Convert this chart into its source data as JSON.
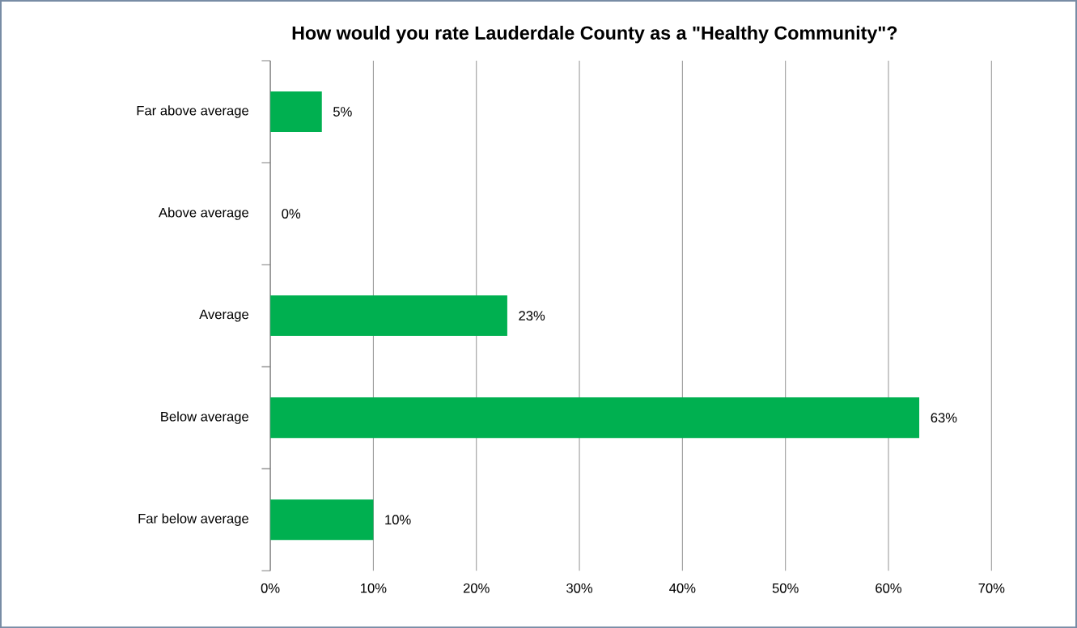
{
  "chart_data": {
    "type": "bar",
    "orientation": "horizontal",
    "title": "How would you rate Lauderdale County as a \"Healthy Community\"?",
    "categories": [
      "Far above average",
      "Above average",
      "Average",
      "Below average",
      "Far below average"
    ],
    "values": [
      5,
      0,
      23,
      63,
      10
    ],
    "value_labels": [
      "5%",
      "0%",
      "23%",
      "63%",
      "10%"
    ],
    "color": "#00b050",
    "xlim": [
      0,
      70
    ],
    "xticks": [
      {
        "value": 0,
        "label": "0%"
      },
      {
        "value": 10,
        "label": "10%"
      },
      {
        "value": 20,
        "label": "20%"
      },
      {
        "value": 30,
        "label": "30%"
      },
      {
        "value": 40,
        "label": "40%"
      },
      {
        "value": 50,
        "label": "50%"
      },
      {
        "value": 60,
        "label": "60%"
      },
      {
        "value": 70,
        "label": "70%"
      }
    ],
    "grid": "x"
  }
}
